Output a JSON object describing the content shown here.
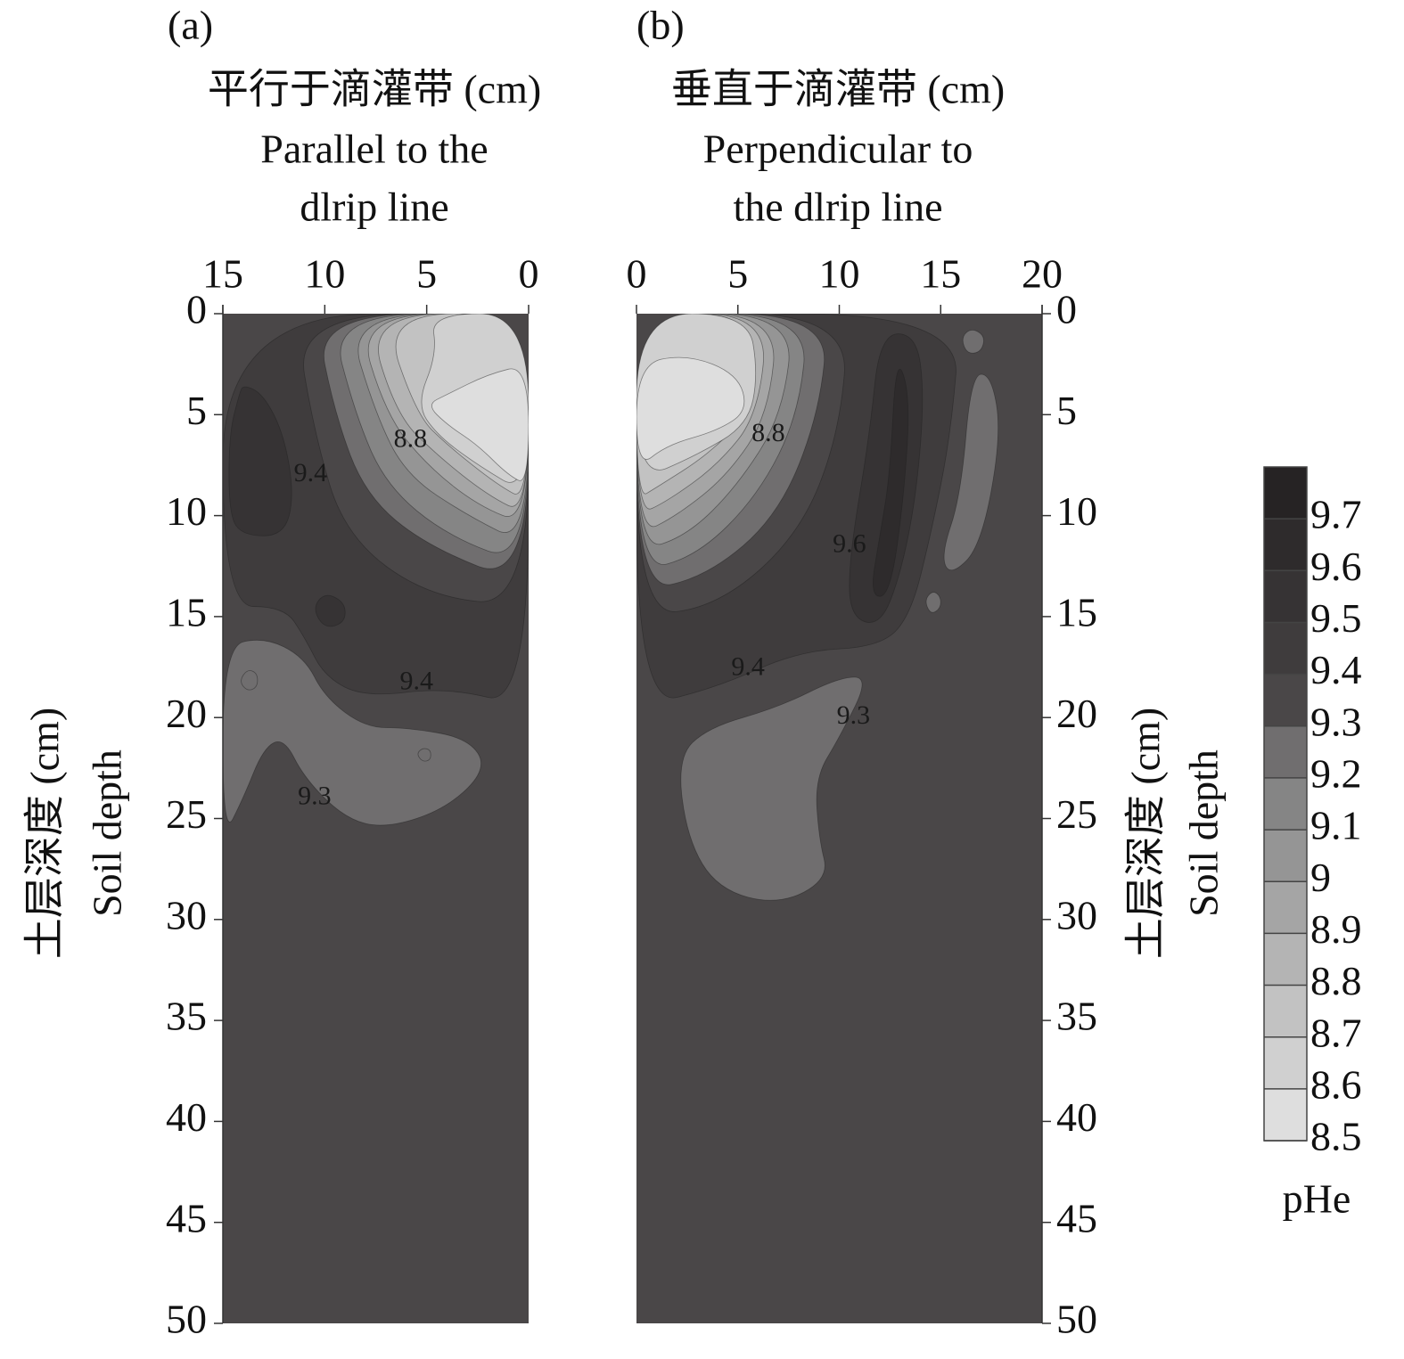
{
  "chart_data": [
    {
      "type": "contour",
      "panel_label": "(a)",
      "xlabel": [
        "平行于滴灌带 (cm)",
        "Parallel to the",
        "dlrip line"
      ],
      "ylabel": [
        "土层深度 (cm)",
        "Soil depth"
      ],
      "xlim": [
        15,
        0
      ],
      "xticks": [
        15,
        10,
        5,
        0
      ],
      "ylim": [
        0,
        50
      ],
      "yticks": [
        0,
        5,
        10,
        15,
        20,
        25,
        30,
        35,
        40,
        45,
        50
      ],
      "yaxis_side": "left",
      "background_level": 9.3,
      "regions": [
        {
          "level": 9.4,
          "points": [
            [
              15,
              0
            ],
            [
              15,
              14.5
            ],
            [
              12,
              14.5
            ],
            [
              11,
              16
            ],
            [
              10,
              18
            ],
            [
              8,
              19
            ],
            [
              4,
              18.5
            ],
            [
              0,
              19.5
            ],
            [
              0,
              0
            ]
          ]
        },
        {
          "level": 9.2,
          "points": [
            [
              15,
              16.5
            ],
            [
              13,
              16
            ],
            [
              11,
              17
            ],
            [
              10,
              19
            ],
            [
              8,
              20.5
            ],
            [
              6,
              20.5
            ],
            [
              3,
              21
            ],
            [
              2,
              22.5
            ],
            [
              4,
              24.5
            ],
            [
              7,
              25.5
            ],
            [
              9,
              25
            ],
            [
              11,
              23
            ],
            [
              12,
              21
            ],
            [
              13,
              21.5
            ],
            [
              14,
              24
            ],
            [
              15,
              26
            ]
          ]
        },
        {
          "level": 9.5,
          "points": [
            [
              14,
              3.5
            ],
            [
              13,
              4
            ],
            [
              12,
              6
            ],
            [
              11.5,
              9
            ],
            [
              12,
              11
            ],
            [
              14,
              11
            ],
            [
              14.7,
              10
            ],
            [
              14.7,
              6
            ],
            [
              14.2,
              4
            ]
          ]
        },
        {
          "level": 9.5,
          "points": [
            [
              10,
              13.8
            ],
            [
              9,
              14.3
            ],
            [
              9,
              15.3
            ],
            [
              10,
              15.6
            ],
            [
              10.6,
              14.6
            ]
          ]
        },
        {
          "level": 9.3,
          "points": [
            [
              11.5,
              0
            ],
            [
              10.5,
              6
            ],
            [
              9,
              11
            ],
            [
              5,
              14
            ],
            [
              0,
              14.5
            ],
            [
              0,
              0
            ]
          ]
        },
        {
          "level": 9.2,
          "points": [
            [
              10.5,
              0
            ],
            [
              9.5,
              5
            ],
            [
              8,
              9
            ],
            [
              5,
              11.5
            ],
            [
              0,
              13.5
            ],
            [
              0,
              0
            ]
          ]
        },
        {
          "level": 9.1,
          "points": [
            [
              9.8,
              0
            ],
            [
              8.5,
              5
            ],
            [
              7,
              8.5
            ],
            [
              4,
              11
            ],
            [
              0,
              12.5
            ],
            [
              0,
              0
            ]
          ]
        },
        {
          "level": 9.0,
          "points": [
            [
              9,
              0
            ],
            [
              7.5,
              5
            ],
            [
              6,
              8
            ],
            [
              3,
              10
            ],
            [
              0,
              11.5
            ],
            [
              0,
              0
            ]
          ]
        },
        {
          "level": 8.9,
          "points": [
            [
              8.5,
              0
            ],
            [
              7,
              5
            ],
            [
              5,
              7.5
            ],
            [
              2.5,
              9.5
            ],
            [
              0,
              10.5
            ],
            [
              0,
              0
            ]
          ]
        },
        {
          "level": 8.8,
          "points": [
            [
              8,
              0
            ],
            [
              6.5,
              5
            ],
            [
              4.5,
              7
            ],
            [
              2,
              9
            ],
            [
              0,
              10
            ],
            [
              0,
              0
            ]
          ]
        },
        {
          "level": 8.7,
          "points": [
            [
              7.2,
              0
            ],
            [
              5.5,
              5
            ],
            [
              4,
              6.5
            ],
            [
              1.5,
              8.5
            ],
            [
              0,
              9.3
            ],
            [
              0,
              0
            ]
          ]
        },
        {
          "level": 8.6,
          "points": [
            [
              4.8,
              0
            ],
            [
              4.5,
              2
            ],
            [
              5.5,
              4.5
            ],
            [
              4.5,
              6
            ],
            [
              2.5,
              7.5
            ],
            [
              0,
              9
            ],
            [
              0,
              0
            ]
          ]
        },
        {
          "level": 8.5,
          "points": [
            [
              5,
              4.5
            ],
            [
              4,
              4
            ],
            [
              2,
              3
            ],
            [
              0,
              2.5
            ],
            [
              0,
              8.5
            ],
            [
              1,
              8
            ],
            [
              2.5,
              6.5
            ],
            [
              4,
              5.5
            ]
          ]
        },
        {
          "level": 9.2,
          "points": [
            [
              13.8,
              17.6
            ],
            [
              13.3,
              17.8
            ],
            [
              13.3,
              18.5
            ],
            [
              13.8,
              18.7
            ],
            [
              14.2,
              18.2
            ]
          ]
        },
        {
          "level": 9.2,
          "points": [
            [
              5.2,
              21.5
            ],
            [
              4.8,
              21.6
            ],
            [
              4.8,
              22.1
            ],
            [
              5.2,
              22.2
            ],
            [
              5.5,
              21.8
            ]
          ]
        }
      ],
      "contour_labels": [
        {
          "text": "9.4",
          "x": 5.5,
          "y": 18.3
        },
        {
          "text": "9.3",
          "x": 10.5,
          "y": 24
        },
        {
          "text": "9.4",
          "x": 10.7,
          "y": 8
        },
        {
          "text": "8.8",
          "x": 5.8,
          "y": 6.3
        }
      ]
    },
    {
      "type": "contour",
      "panel_label": "(b)",
      "xlabel": [
        "垂直于滴灌带 (cm)",
        "Perpendicular to",
        "the dlrip line"
      ],
      "ylabel": [
        "土层深度 (cm)",
        "Soil depth"
      ],
      "xlim": [
        0,
        20
      ],
      "xticks": [
        0,
        5,
        10,
        15,
        20
      ],
      "ylim": [
        0,
        50
      ],
      "yticks": [
        0,
        5,
        10,
        15,
        20,
        25,
        30,
        35,
        40,
        45,
        50
      ],
      "yaxis_side": "right",
      "background_level": 9.3,
      "regions": [
        {
          "level": 9.4,
          "points": [
            [
              0,
              0
            ],
            [
              16,
              0
            ],
            [
              15.5,
              6
            ],
            [
              14.5,
              11
            ],
            [
              13.5,
              15
            ],
            [
              12,
              16.5
            ],
            [
              8,
              16.7
            ],
            [
              4,
              18.5
            ],
            [
              0,
              19.5
            ]
          ]
        },
        {
          "level": 9.5,
          "points": [
            [
              12,
              1
            ],
            [
              11.5,
              6
            ],
            [
              10.5,
              12
            ],
            [
              10.5,
              15
            ],
            [
              12,
              15.5
            ],
            [
              13,
              13
            ],
            [
              13.8,
              9
            ],
            [
              14.2,
              4
            ],
            [
              13.8,
              1
            ]
          ]
        },
        {
          "level": 9.6,
          "points": [
            [
              12.8,
              2
            ],
            [
              12.5,
              8
            ],
            [
              12,
              11
            ],
            [
              11.5,
              14
            ],
            [
              12.5,
              14
            ],
            [
              13.2,
              9
            ],
            [
              13.5,
              4
            ]
          ]
        },
        {
          "level": 9.2,
          "points": [
            [
              2,
              22
            ],
            [
              3.5,
              20.5
            ],
            [
              7,
              19.5
            ],
            [
              10,
              18
            ],
            [
              11.5,
              18
            ],
            [
              10,
              21
            ],
            [
              8.8,
              23
            ],
            [
              9,
              26
            ],
            [
              9.5,
              28
            ],
            [
              7,
              29.3
            ],
            [
              4,
              28.5
            ],
            [
              2.5,
              26
            ]
          ]
        },
        {
          "level": 9.2,
          "points": [
            [
              16.5,
              3
            ],
            [
              16,
              9
            ],
            [
              15,
              12
            ],
            [
              15.5,
              13
            ],
            [
              17,
              11.5
            ],
            [
              18,
              6
            ],
            [
              17.5,
              3
            ]
          ]
        },
        {
          "level": 9.2,
          "points": [
            [
              16.5,
              0.7
            ],
            [
              16,
              1.2
            ],
            [
              16.3,
              2
            ],
            [
              17,
              1.9
            ],
            [
              17.2,
              1.1
            ]
          ]
        },
        {
          "level": 9.2,
          "points": [
            [
              14.6,
              13.7
            ],
            [
              14.2,
              14.2
            ],
            [
              14.5,
              14.9
            ],
            [
              15,
              14.6
            ],
            [
              15,
              14
            ]
          ]
        },
        {
          "level": 9.3,
          "points": [
            [
              0,
              0
            ],
            [
              10.5,
              0
            ],
            [
              10,
              6
            ],
            [
              8,
              11
            ],
            [
              4,
              14.5
            ],
            [
              0,
              15
            ]
          ]
        },
        {
          "level": 9.2,
          "points": [
            [
              0,
              0
            ],
            [
              9.5,
              0
            ],
            [
              9,
              5
            ],
            [
              7,
              10
            ],
            [
              3.5,
              13
            ],
            [
              0,
              13.8
            ]
          ]
        },
        {
          "level": 9.1,
          "points": [
            [
              0,
              0
            ],
            [
              8.5,
              0
            ],
            [
              8,
              5
            ],
            [
              6,
              9
            ],
            [
              3,
              12
            ],
            [
              0,
              12.8
            ]
          ]
        },
        {
          "level": 9.0,
          "points": [
            [
              0,
              0
            ],
            [
              7.8,
              0
            ],
            [
              7.2,
              5
            ],
            [
              5,
              8.5
            ],
            [
              2.5,
              11
            ],
            [
              0,
              11.8
            ]
          ]
        },
        {
          "level": 8.9,
          "points": [
            [
              0,
              0
            ],
            [
              7,
              0
            ],
            [
              6.5,
              5
            ],
            [
              4.5,
              8
            ],
            [
              2,
              10
            ],
            [
              0,
              11
            ]
          ]
        },
        {
          "level": 8.8,
          "points": [
            [
              0,
              0
            ],
            [
              6.5,
              0
            ],
            [
              6,
              5
            ],
            [
              4,
              7.5
            ],
            [
              1.5,
              9.3
            ],
            [
              0,
              10
            ]
          ]
        },
        {
          "level": 8.7,
          "points": [
            [
              0,
              0
            ],
            [
              6,
              0
            ],
            [
              5.5,
              5
            ],
            [
              3.5,
              7
            ],
            [
              1,
              8.6
            ],
            [
              0,
              9.2
            ]
          ]
        },
        {
          "level": 8.6,
          "points": [
            [
              0,
              0
            ],
            [
              5.5,
              0
            ],
            [
              6,
              3
            ],
            [
              5.5,
              5.5
            ],
            [
              3,
              7
            ],
            [
              0,
              8.3
            ]
          ]
        },
        {
          "level": 8.5,
          "points": [
            [
              0,
              2.5
            ],
            [
              2.5,
              2
            ],
            [
              5,
              3
            ],
            [
              5.5,
              4.8
            ],
            [
              4,
              5.8
            ],
            [
              1.5,
              6.5
            ],
            [
              0,
              7.7
            ]
          ]
        }
      ],
      "contour_labels": [
        {
          "text": "9.4",
          "x": 5.5,
          "y": 17.6
        },
        {
          "text": "9.3",
          "x": 10.7,
          "y": 20
        },
        {
          "text": "9.6",
          "x": 10.5,
          "y": 11.5
        },
        {
          "text": "8.8",
          "x": 6.5,
          "y": 6
        }
      ],
      "colorbar": {
        "label": "pHe",
        "clim": [
          8.5,
          9.8
        ],
        "cticks": [
          8.5,
          8.6,
          8.7,
          8.8,
          8.9,
          9.0,
          9.1,
          9.2,
          9.3,
          9.4,
          9.5,
          9.6,
          9.7
        ],
        "colors": [
          "#dedede",
          "#d0d0d0",
          "#c2c2c2",
          "#b4b4b4",
          "#a5a5a5",
          "#959595",
          "#858585",
          "#706e6f",
          "#4a4748",
          "#3f3c3d",
          "#363334",
          "#2e2b2c",
          "#262324"
        ]
      }
    }
  ]
}
